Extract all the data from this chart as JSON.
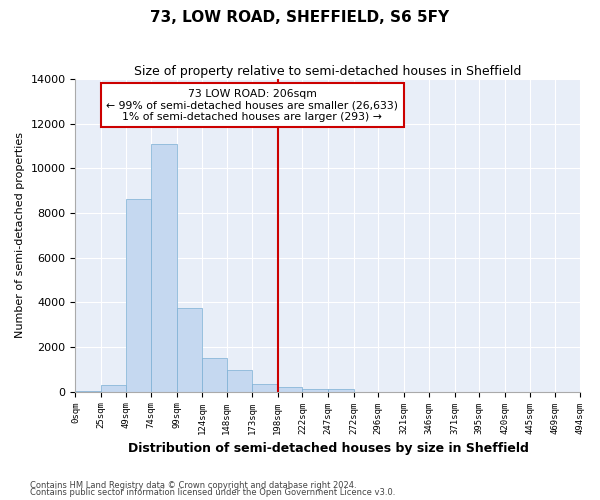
{
  "title": "73, LOW ROAD, SHEFFIELD, S6 5FY",
  "subtitle": "Size of property relative to semi-detached houses in Sheffield",
  "xlabel": "Distribution of semi-detached houses by size in Sheffield",
  "ylabel": "Number of semi-detached properties",
  "footer1": "Contains HM Land Registry data © Crown copyright and database right 2024.",
  "footer2": "Contains public sector information licensed under the Open Government Licence v3.0.",
  "bar_color": "#c5d8f0",
  "bar_edge_color": "#7bafd4",
  "background_color": "#e8eef8",
  "grid_color": "#ffffff",
  "vline_x": 198,
  "vline_color": "#cc0000",
  "annotation_text": "73 LOW ROAD: 206sqm\n← 99% of semi-detached houses are smaller (26,633)\n1% of semi-detached houses are larger (293) →",
  "annotation_box_color": "#cc0000",
  "ylim": [
    0,
    14000
  ],
  "bin_edges": [
    0,
    25,
    49,
    74,
    99,
    124,
    148,
    173,
    198,
    222,
    247,
    272,
    296,
    321,
    346,
    371,
    395,
    420,
    445,
    469,
    494
  ],
  "bin_counts": [
    50,
    300,
    8650,
    11100,
    3750,
    1520,
    950,
    350,
    200,
    130,
    100,
    0,
    0,
    0,
    0,
    0,
    0,
    0,
    0,
    0
  ],
  "yticks": [
    0,
    2000,
    4000,
    6000,
    8000,
    10000,
    12000,
    14000
  ]
}
